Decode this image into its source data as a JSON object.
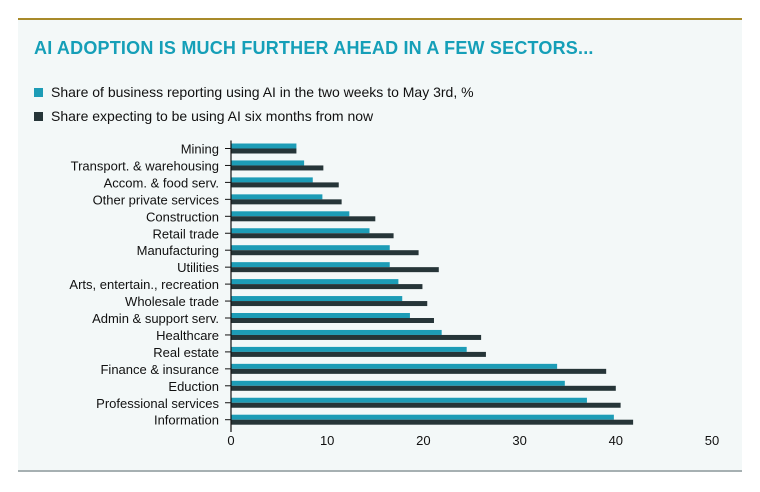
{
  "title": "AI ADOPTION IS MUCH FURTHER AHEAD IN A FEW SECTORS...",
  "colors": {
    "series1": "#1d9cb6",
    "series2": "#263538"
  },
  "chart_data": {
    "type": "bar",
    "orientation": "horizontal",
    "categories": [
      "Mining",
      "Transport. & warehousing",
      "Accom. & food serv.",
      "Other private services",
      "Construction",
      "Retail trade",
      "Manufacturing",
      "Utilities",
      "Arts, entertain., recreation",
      "Wholesale trade",
      "Admin & support serv.",
      "Healthcare",
      "Real estate",
      "Finance & insurance",
      "Eduction",
      "Professional services",
      "Information"
    ],
    "series": [
      {
        "name": "Share of business reporting using AI in the two weeks to May 3rd, %",
        "values": [
          6.8,
          7.6,
          8.5,
          9.5,
          12.3,
          14.4,
          16.5,
          16.5,
          17.4,
          17.8,
          18.6,
          21.9,
          24.5,
          33.9,
          34.7,
          37.0,
          39.8
        ]
      },
      {
        "name": "Share expecting to be using AI six months from now",
        "values": [
          6.8,
          9.6,
          11.2,
          11.5,
          15.0,
          16.9,
          19.5,
          21.6,
          19.9,
          20.4,
          21.1,
          26.0,
          26.5,
          39.0,
          40.0,
          40.5,
          41.8
        ]
      }
    ],
    "x_ticks": [
      "0",
      "10",
      "20",
      "30",
      "40",
      "50"
    ],
    "xlim": [
      0,
      50
    ]
  }
}
